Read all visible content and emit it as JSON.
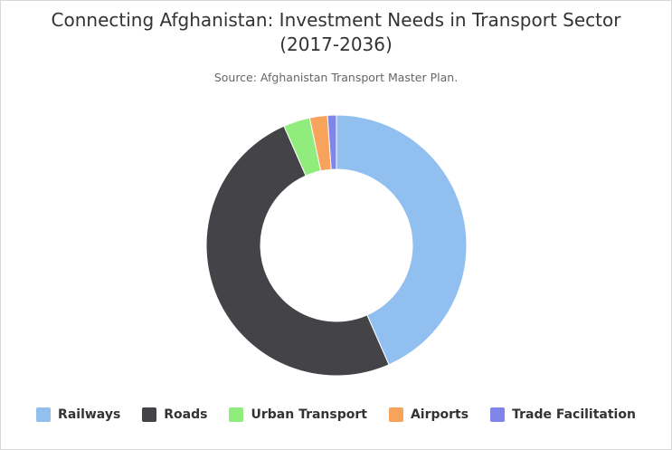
{
  "chart_data": {
    "type": "donut",
    "title": "Connecting Afghanistan: Investment Needs in Transport Sector (2017-2036)",
    "subtitle": "Source: Afghanistan Transport Master Plan.",
    "categories": [
      "Railways",
      "Roads",
      "Urban Transport",
      "Airports",
      "Trade Facilitation"
    ],
    "values": [
      43.4,
      50,
      3.3,
      2.2,
      1.1
    ],
    "colors": [
      "#90bff0",
      "#434348",
      "#90ed7d",
      "#f7a35c",
      "#8085e9"
    ],
    "legend": "bottom"
  }
}
